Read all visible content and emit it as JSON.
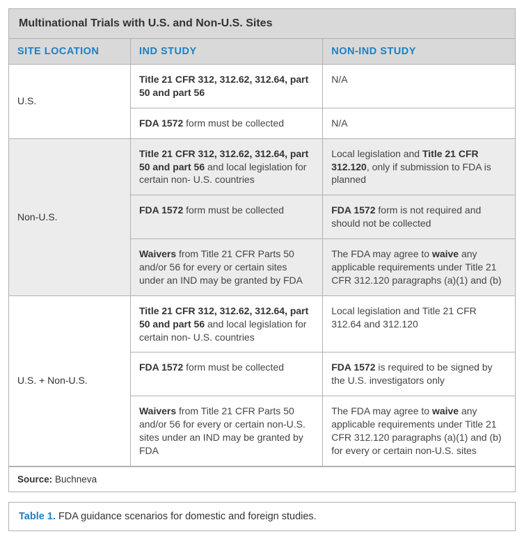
{
  "title": "Multinational Trials with U.S. and Non-U.S. Sites",
  "columns": {
    "site_location": "SITE LOCATION",
    "ind_study": "IND STUDY",
    "non_ind_study": "NON-IND STUDY"
  },
  "groups": [
    {
      "location": "U.S.",
      "shaded": false,
      "rows": [
        {
          "ind": "<b>Title 21 CFR 312, 312.62, 312.64, part 50 and part 56</b>",
          "non": "N/A"
        },
        {
          "ind": "<b>FDA 1572</b> form must be collected",
          "non": "N/A"
        }
      ]
    },
    {
      "location": "Non-U.S.",
      "shaded": true,
      "rows": [
        {
          "ind": "<b>Title 21 CFR 312, 312.62, 312.64, part 50 and part 56</b> and local legislation for certain non- U.S. countries",
          "non": "Local legislation and <b>Title 21 CFR 312.120</b>, only if submission to FDA is planned"
        },
        {
          "ind": "<b>FDA 1572</b> form must be collected",
          "non": "<b>FDA 1572</b> form is not required and should not be collected"
        },
        {
          "ind": "<b>Waivers</b> from Title 21 CFR Parts 50 and/or 56 for every or certain sites under an IND may be granted by FDA",
          "non": "The FDA may agree to <b>waive</b> any applicable requirements under Title 21 CFR 312.120 paragraphs (a)(1) and (b)"
        }
      ]
    },
    {
      "location": "U.S. + Non-U.S.",
      "shaded": false,
      "rows": [
        {
          "ind": "<b>Title 21 CFR 312, 312.62, 312.64, part 50 and part 56</b> and local legislation for certain non- U.S. countries",
          "non": "Local legislation and Title 21 CFR 312.64 and 312.120"
        },
        {
          "ind": "<b>FDA 1572</b> form must be collected",
          "non": "<b>FDA 1572</b> is required to be signed by the U.S. investigators only"
        },
        {
          "ind": "<b>Waivers</b> from Title 21 CFR Parts 50 and/or 56 for every or certain non-U.S. sites under an IND may be granted by FDA",
          "non": "The FDA may agree to <b>waive</b> any applicable requirements under Title 21 CFR 312.120 paragraphs (a)(1) and (b) for every or certain non-U.S. sites"
        }
      ]
    }
  ],
  "source_label": "Source:",
  "source_value": "Buchneva",
  "caption_label": "Table 1.",
  "caption_text": "FDA guidance scenarios for domestic and foreign studies.",
  "colors": {
    "header_bg": "#d9d9d9",
    "header_text": "#1e7fc1",
    "border": "#b0b0b0",
    "shaded_bg": "#ececec",
    "body_text": "#333"
  }
}
